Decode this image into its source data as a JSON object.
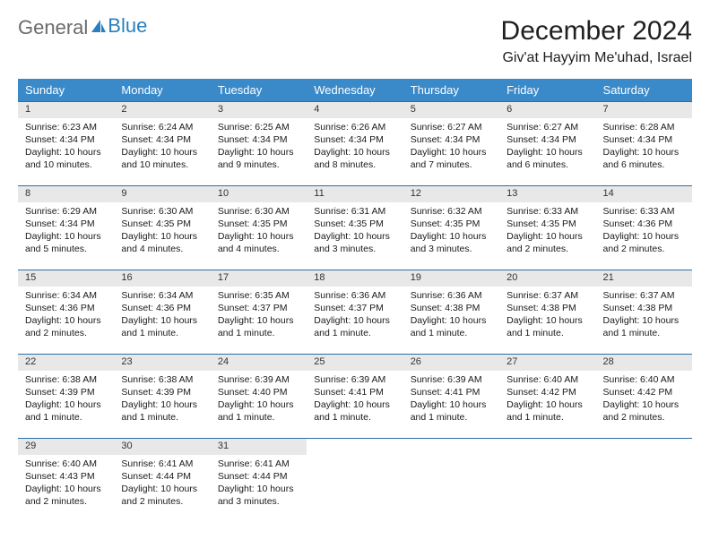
{
  "logo": {
    "general": "General",
    "blue": "Blue"
  },
  "title": "December 2024",
  "location": "Giv'at Hayyim Me'uhad, Israel",
  "colors": {
    "header_bg": "#3a89c9",
    "header_text": "#ffffff",
    "daynum_bg": "#e8e8e8",
    "border": "#2a6fa8",
    "logo_gray": "#6b6b6b",
    "logo_blue": "#2a7fbf"
  },
  "weekdays": [
    "Sunday",
    "Monday",
    "Tuesday",
    "Wednesday",
    "Thursday",
    "Friday",
    "Saturday"
  ],
  "weeks": [
    [
      {
        "n": "1",
        "sr": "Sunrise: 6:23 AM",
        "ss": "Sunset: 4:34 PM",
        "dl": "Daylight: 10 hours and 10 minutes."
      },
      {
        "n": "2",
        "sr": "Sunrise: 6:24 AM",
        "ss": "Sunset: 4:34 PM",
        "dl": "Daylight: 10 hours and 10 minutes."
      },
      {
        "n": "3",
        "sr": "Sunrise: 6:25 AM",
        "ss": "Sunset: 4:34 PM",
        "dl": "Daylight: 10 hours and 9 minutes."
      },
      {
        "n": "4",
        "sr": "Sunrise: 6:26 AM",
        "ss": "Sunset: 4:34 PM",
        "dl": "Daylight: 10 hours and 8 minutes."
      },
      {
        "n": "5",
        "sr": "Sunrise: 6:27 AM",
        "ss": "Sunset: 4:34 PM",
        "dl": "Daylight: 10 hours and 7 minutes."
      },
      {
        "n": "6",
        "sr": "Sunrise: 6:27 AM",
        "ss": "Sunset: 4:34 PM",
        "dl": "Daylight: 10 hours and 6 minutes."
      },
      {
        "n": "7",
        "sr": "Sunrise: 6:28 AM",
        "ss": "Sunset: 4:34 PM",
        "dl": "Daylight: 10 hours and 6 minutes."
      }
    ],
    [
      {
        "n": "8",
        "sr": "Sunrise: 6:29 AM",
        "ss": "Sunset: 4:34 PM",
        "dl": "Daylight: 10 hours and 5 minutes."
      },
      {
        "n": "9",
        "sr": "Sunrise: 6:30 AM",
        "ss": "Sunset: 4:35 PM",
        "dl": "Daylight: 10 hours and 4 minutes."
      },
      {
        "n": "10",
        "sr": "Sunrise: 6:30 AM",
        "ss": "Sunset: 4:35 PM",
        "dl": "Daylight: 10 hours and 4 minutes."
      },
      {
        "n": "11",
        "sr": "Sunrise: 6:31 AM",
        "ss": "Sunset: 4:35 PM",
        "dl": "Daylight: 10 hours and 3 minutes."
      },
      {
        "n": "12",
        "sr": "Sunrise: 6:32 AM",
        "ss": "Sunset: 4:35 PM",
        "dl": "Daylight: 10 hours and 3 minutes."
      },
      {
        "n": "13",
        "sr": "Sunrise: 6:33 AM",
        "ss": "Sunset: 4:35 PM",
        "dl": "Daylight: 10 hours and 2 minutes."
      },
      {
        "n": "14",
        "sr": "Sunrise: 6:33 AM",
        "ss": "Sunset: 4:36 PM",
        "dl": "Daylight: 10 hours and 2 minutes."
      }
    ],
    [
      {
        "n": "15",
        "sr": "Sunrise: 6:34 AM",
        "ss": "Sunset: 4:36 PM",
        "dl": "Daylight: 10 hours and 2 minutes."
      },
      {
        "n": "16",
        "sr": "Sunrise: 6:34 AM",
        "ss": "Sunset: 4:36 PM",
        "dl": "Daylight: 10 hours and 1 minute."
      },
      {
        "n": "17",
        "sr": "Sunrise: 6:35 AM",
        "ss": "Sunset: 4:37 PM",
        "dl": "Daylight: 10 hours and 1 minute."
      },
      {
        "n": "18",
        "sr": "Sunrise: 6:36 AM",
        "ss": "Sunset: 4:37 PM",
        "dl": "Daylight: 10 hours and 1 minute."
      },
      {
        "n": "19",
        "sr": "Sunrise: 6:36 AM",
        "ss": "Sunset: 4:38 PM",
        "dl": "Daylight: 10 hours and 1 minute."
      },
      {
        "n": "20",
        "sr": "Sunrise: 6:37 AM",
        "ss": "Sunset: 4:38 PM",
        "dl": "Daylight: 10 hours and 1 minute."
      },
      {
        "n": "21",
        "sr": "Sunrise: 6:37 AM",
        "ss": "Sunset: 4:38 PM",
        "dl": "Daylight: 10 hours and 1 minute."
      }
    ],
    [
      {
        "n": "22",
        "sr": "Sunrise: 6:38 AM",
        "ss": "Sunset: 4:39 PM",
        "dl": "Daylight: 10 hours and 1 minute."
      },
      {
        "n": "23",
        "sr": "Sunrise: 6:38 AM",
        "ss": "Sunset: 4:39 PM",
        "dl": "Daylight: 10 hours and 1 minute."
      },
      {
        "n": "24",
        "sr": "Sunrise: 6:39 AM",
        "ss": "Sunset: 4:40 PM",
        "dl": "Daylight: 10 hours and 1 minute."
      },
      {
        "n": "25",
        "sr": "Sunrise: 6:39 AM",
        "ss": "Sunset: 4:41 PM",
        "dl": "Daylight: 10 hours and 1 minute."
      },
      {
        "n": "26",
        "sr": "Sunrise: 6:39 AM",
        "ss": "Sunset: 4:41 PM",
        "dl": "Daylight: 10 hours and 1 minute."
      },
      {
        "n": "27",
        "sr": "Sunrise: 6:40 AM",
        "ss": "Sunset: 4:42 PM",
        "dl": "Daylight: 10 hours and 1 minute."
      },
      {
        "n": "28",
        "sr": "Sunrise: 6:40 AM",
        "ss": "Sunset: 4:42 PM",
        "dl": "Daylight: 10 hours and 2 minutes."
      }
    ],
    [
      {
        "n": "29",
        "sr": "Sunrise: 6:40 AM",
        "ss": "Sunset: 4:43 PM",
        "dl": "Daylight: 10 hours and 2 minutes."
      },
      {
        "n": "30",
        "sr": "Sunrise: 6:41 AM",
        "ss": "Sunset: 4:44 PM",
        "dl": "Daylight: 10 hours and 2 minutes."
      },
      {
        "n": "31",
        "sr": "Sunrise: 6:41 AM",
        "ss": "Sunset: 4:44 PM",
        "dl": "Daylight: 10 hours and 3 minutes."
      },
      null,
      null,
      null,
      null
    ]
  ]
}
